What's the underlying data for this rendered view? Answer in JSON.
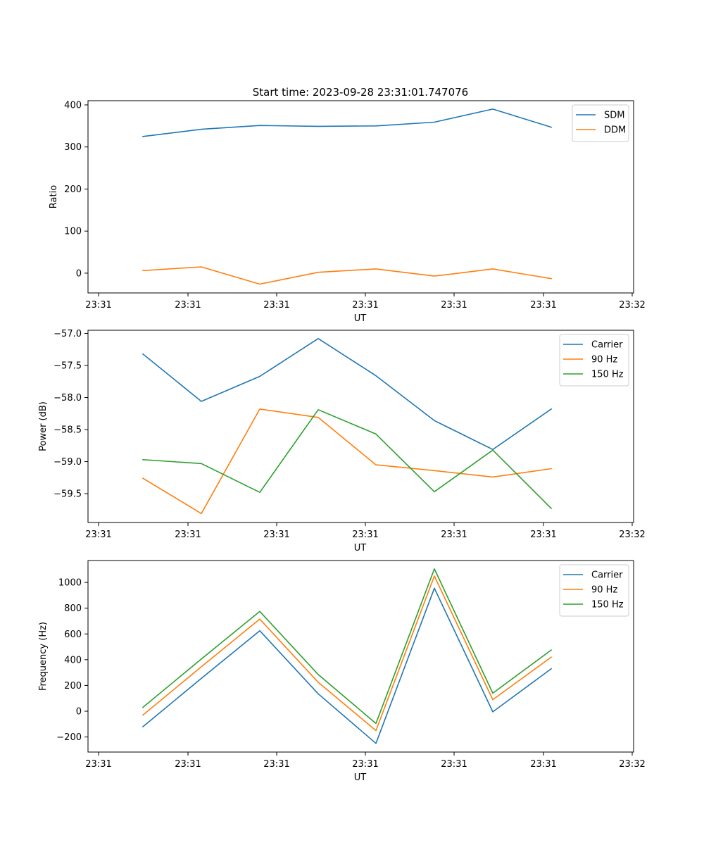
{
  "title": "Start time: 2023-09-28 23:31:01.747076",
  "chart_data": [
    {
      "type": "line",
      "xlabel": "UT",
      "ylabel": "Ratio",
      "x_tick_labels": [
        "23:31",
        "23:31",
        "23:31",
        "23:31",
        "23:31",
        "23:31",
        "23:32"
      ],
      "y_ticks": [
        0,
        100,
        200,
        300,
        400
      ],
      "y_tick_labels": [
        "0",
        "100",
        "200",
        "300",
        "400"
      ],
      "ylim": [
        -47,
        410
      ],
      "legend_location": "top-right",
      "series": [
        {
          "name": "SDM",
          "color": "#1f77b4",
          "values": [
            325,
            342,
            351,
            349,
            350,
            359,
            390,
            347
          ]
        },
        {
          "name": "DDM",
          "color": "#ff7f0e",
          "values": [
            6,
            15,
            -26,
            2,
            10,
            -7,
            10,
            -13
          ]
        }
      ]
    },
    {
      "type": "line",
      "xlabel": "UT",
      "ylabel": "Power (dB)",
      "x_tick_labels": [
        "23:31",
        "23:31",
        "23:31",
        "23:31",
        "23:31",
        "23:31",
        "23:32"
      ],
      "y_ticks": [
        -59.5,
        -59.0,
        -58.5,
        -58.0,
        -57.5,
        -57.0
      ],
      "y_tick_labels": [
        "−59.5",
        "−59.0",
        "−58.5",
        "−58.0",
        "−57.5",
        "−57.0"
      ],
      "ylim": [
        -59.95,
        -56.95
      ],
      "legend_location": "top-right",
      "series": [
        {
          "name": "Carrier",
          "color": "#1f77b4",
          "values": [
            -57.32,
            -58.06,
            -57.67,
            -57.08,
            -57.66,
            -58.36,
            -58.81,
            -58.18
          ]
        },
        {
          "name": "90 Hz",
          "color": "#ff7f0e",
          "values": [
            -59.26,
            -59.81,
            -58.18,
            -58.31,
            -59.05,
            -59.14,
            -59.24,
            -59.11
          ]
        },
        {
          "name": "150 Hz",
          "color": "#2ca02c",
          "values": [
            -58.97,
            -59.03,
            -59.48,
            -58.19,
            -58.57,
            -59.47,
            -58.82,
            -59.73
          ]
        }
      ]
    },
    {
      "type": "line",
      "xlabel": "UT",
      "ylabel": "Frequency (Hz)",
      "x_tick_labels": [
        "23:31",
        "23:31",
        "23:31",
        "23:31",
        "23:31",
        "23:31",
        "23:32"
      ],
      "y_ticks": [
        -200,
        0,
        200,
        400,
        600,
        800,
        1000
      ],
      "y_tick_labels": [
        "−200",
        "0",
        "200",
        "400",
        "600",
        "800",
        "1000"
      ],
      "ylim": [
        -317,
        1170
      ],
      "legend_location": "top-right",
      "series": [
        {
          "name": "Carrier",
          "color": "#1f77b4",
          "values": [
            -120,
            255,
            625,
            135,
            -250,
            955,
            -5,
            330
          ]
        },
        {
          "name": "90 Hz",
          "color": "#ff7f0e",
          "values": [
            -30,
            345,
            715,
            225,
            -150,
            1050,
            90,
            420
          ]
        },
        {
          "name": "150 Hz",
          "color": "#2ca02c",
          "values": [
            30,
            405,
            775,
            285,
            -95,
            1105,
            140,
            475
          ]
        }
      ]
    }
  ]
}
